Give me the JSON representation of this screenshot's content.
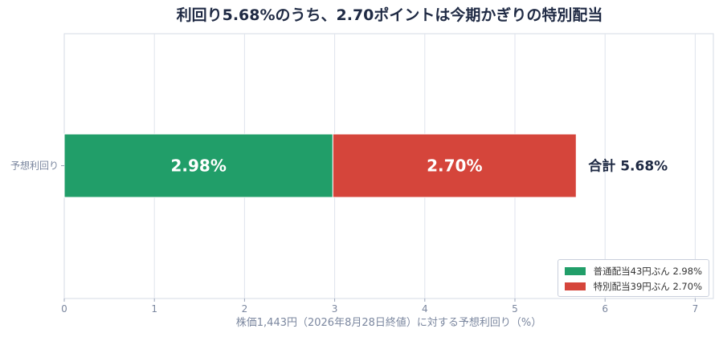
{
  "chart_data": {
    "type": "bar",
    "orientation": "horizontal",
    "stacked": true,
    "title": "利回り5.68%のうち、2.70ポイントは今期かぎりの特別配当",
    "xlabel": "株価1,443円（2026年8月28日終値）に対する予想利回り（%）",
    "ylabel": "",
    "categories": [
      "予想利回り"
    ],
    "xlim": [
      0,
      7.2
    ],
    "xticks": [
      0,
      1,
      2,
      3,
      4,
      5,
      6,
      7
    ],
    "grid": "vertical",
    "legend_position": "bottom-right",
    "series": [
      {
        "name": "普通配当43円ぶん 2.98%",
        "values": [
          2.98
        ],
        "color": "#219e69",
        "label": "2.98%"
      },
      {
        "name": "特別配当39円ぶん 2.70%",
        "values": [
          2.7
        ],
        "color": "#d5453b",
        "label": "2.70%"
      }
    ],
    "total_label": "合計 5.68%"
  }
}
